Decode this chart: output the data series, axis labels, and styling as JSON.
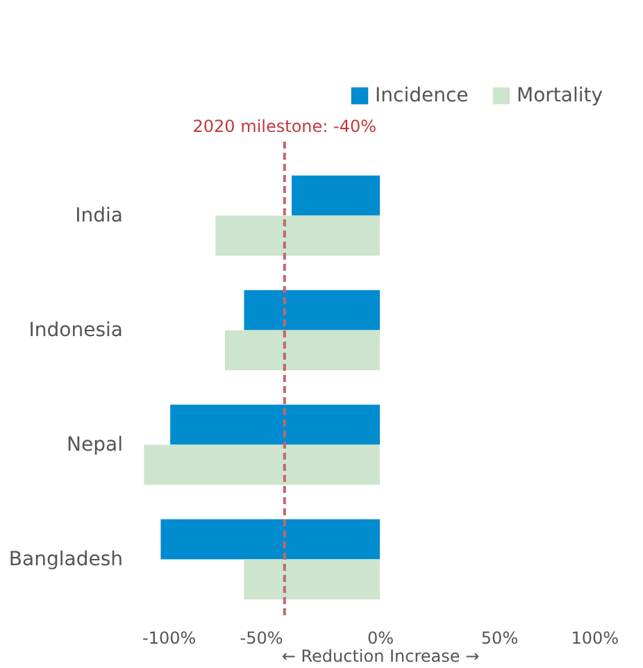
{
  "chart_data": {
    "type": "bar",
    "orientation": "horizontal",
    "categories": [
      "India",
      "Indonesia",
      "Nepal",
      "Bangladesh"
    ],
    "series": [
      {
        "name": "Incidence",
        "color": "#008ccf",
        "values": [
          -37,
          -57,
          -88,
          -92
        ]
      },
      {
        "name": "Mortality",
        "color": "#cde4cd",
        "values": [
          -69,
          -65,
          -99,
          -57
        ]
      }
    ],
    "xlim": [
      -100,
      100
    ],
    "xticks": [
      {
        "value": -100,
        "label": "-100%"
      },
      {
        "value": -50,
        "label": "-50%"
      },
      {
        "value": 0,
        "label": "0%"
      },
      {
        "value": 50,
        "label": "50%"
      },
      {
        "value": 100,
        "label": "100%"
      }
    ],
    "xlabel": "← Reduction      Increase →",
    "ref_lines": [
      {
        "axis": "x",
        "value": -40,
        "label": "2020 milestone: -40%",
        "color": "#c0686e",
        "line_style": "dashed"
      }
    ],
    "legend": "top right",
    "grid": false
  }
}
